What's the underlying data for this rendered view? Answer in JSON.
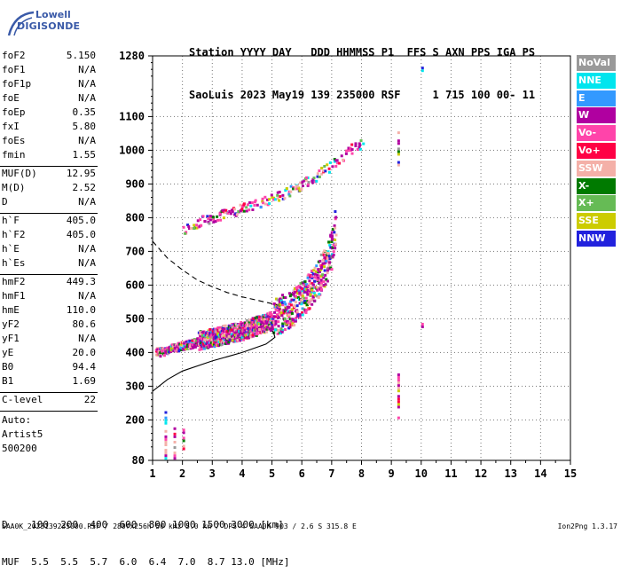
{
  "logo": {
    "line1": "Lowell",
    "line2": "DIGISONDE"
  },
  "header": {
    "line1": "Station YYYY DAY   DDD HHMMSS P1  FFS S AXN PPS IGA PS",
    "line2": "SaoLuis 2023 May19 139 235000 RSF     1 715 100 00- 11"
  },
  "params": {
    "group1": [
      {
        "name": "foF2",
        "value": "5.150"
      },
      {
        "name": "foF1",
        "value": "N/A"
      },
      {
        "name": "foF1p",
        "value": "N/A"
      },
      {
        "name": "foE",
        "value": "N/A"
      },
      {
        "name": "foEp",
        "value": "0.35"
      },
      {
        "name": "fxI",
        "value": "5.80"
      },
      {
        "name": "foEs",
        "value": "N/A"
      },
      {
        "name": "fmin",
        "value": "1.55"
      }
    ],
    "group2": [
      {
        "name": "MUF(D)",
        "value": "12.95"
      },
      {
        "name": "M(D)",
        "value": "2.52"
      },
      {
        "name": "D",
        "value": "N/A"
      }
    ],
    "group3": [
      {
        "name": "h`F",
        "value": "405.0"
      },
      {
        "name": "h`F2",
        "value": "405.0"
      },
      {
        "name": "h`E",
        "value": "N/A"
      },
      {
        "name": "h`Es",
        "value": "N/A"
      }
    ],
    "group4": [
      {
        "name": "hmF2",
        "value": "449.3"
      },
      {
        "name": "hmF1",
        "value": "N/A"
      },
      {
        "name": "hmE",
        "value": "110.0"
      },
      {
        "name": "yF2",
        "value": "80.6"
      },
      {
        "name": "yF1",
        "value": "N/A"
      },
      {
        "name": "yE",
        "value": "20.0"
      },
      {
        "name": "B0",
        "value": "94.4"
      },
      {
        "name": "B1",
        "value": "1.69"
      }
    ],
    "clevel": {
      "name": "C-level",
      "value": "22"
    },
    "auto": [
      "Auto:",
      "Artist5",
      "500200"
    ]
  },
  "legend": [
    {
      "label": "NoVal",
      "color": "#999999"
    },
    {
      "label": "NNE",
      "color": "#00e5ee"
    },
    {
      "label": "E",
      "color": "#3399ff"
    },
    {
      "label": "W",
      "color": "#b000a0"
    },
    {
      "label": "Vo-",
      "color": "#ff44aa"
    },
    {
      "label": "Vo+",
      "color": "#ff0044"
    },
    {
      "label": "SSW",
      "color": "#f4b0a8"
    },
    {
      "label": "X-",
      "color": "#007a00"
    },
    {
      "label": "X+",
      "color": "#66bb55"
    },
    {
      "label": "SSE",
      "color": "#cccc00"
    },
    {
      "label": "NNW",
      "color": "#2222dd"
    }
  ],
  "chart_data": {
    "type": "scatter",
    "x_ticks": [
      "1",
      "2",
      "3",
      "4",
      "5",
      "6",
      "7",
      "8",
      "9",
      "10",
      "11",
      "12",
      "13",
      "14",
      "15"
    ],
    "y_ticks": [
      "80",
      "200",
      "300",
      "400",
      "500",
      "600",
      "700",
      "800",
      "900",
      "1000",
      "1100",
      "1280"
    ],
    "xlim": [
      1,
      15
    ],
    "ylim": [
      80,
      1280
    ],
    "grid": true,
    "series": [
      {
        "name": "echo traces (F2 O/X)",
        "points": [
          [
            1.1,
            400
          ],
          [
            1.3,
            402
          ],
          [
            1.6,
            410
          ],
          [
            2.0,
            420
          ],
          [
            2.5,
            430
          ],
          [
            3.0,
            440
          ],
          [
            3.5,
            450
          ],
          [
            4.0,
            460
          ],
          [
            4.5,
            475
          ],
          [
            5.0,
            490
          ],
          [
            5.5,
            510
          ],
          [
            6.0,
            545
          ],
          [
            6.5,
            600
          ],
          [
            6.8,
            650
          ],
          [
            7.0,
            700
          ],
          [
            7.1,
            760
          ]
        ]
      },
      {
        "name": "second hop",
        "points": [
          [
            2.0,
            765
          ],
          [
            2.5,
            790
          ],
          [
            3.0,
            805
          ],
          [
            4.0,
            830
          ],
          [
            5.0,
            860
          ],
          [
            6.0,
            900
          ],
          [
            7.0,
            960
          ],
          [
            7.5,
            1000
          ],
          [
            8.0,
            1020
          ]
        ]
      },
      {
        "name": "profile (solid)",
        "points": [
          [
            1.0,
            285
          ],
          [
            1.5,
            320
          ],
          [
            2.0,
            345
          ],
          [
            3.0,
            375
          ],
          [
            4.0,
            400
          ],
          [
            4.8,
            425
          ],
          [
            5.1,
            445
          ],
          [
            5.05,
            460
          ],
          [
            5.0,
            465
          ]
        ]
      },
      {
        "name": "profile (dashed)",
        "points": [
          [
            1.0,
            730
          ],
          [
            1.5,
            680
          ],
          [
            2.0,
            645
          ],
          [
            2.5,
            615
          ],
          [
            3.0,
            595
          ],
          [
            3.5,
            578
          ],
          [
            4.0,
            565
          ],
          [
            4.5,
            555
          ],
          [
            5.0,
            545
          ],
          [
            5.2,
            540
          ]
        ]
      }
    ]
  },
  "footer": {
    "line1": "D    100  200  400  600  800 1000 1500 3000 [km]",
    "line2": "MUF  5.5  5.5  5.7  6.0  6.4  7.0  8.7 13.0 [MHz]",
    "line3": "SAA0K_2023139235000.RSF / 280fx256h 50 kHz 5.0 km / DPS-4 SAA0K 903 / 2.6 S 315.8 E",
    "version": "Ion2Png 1.3.17"
  }
}
